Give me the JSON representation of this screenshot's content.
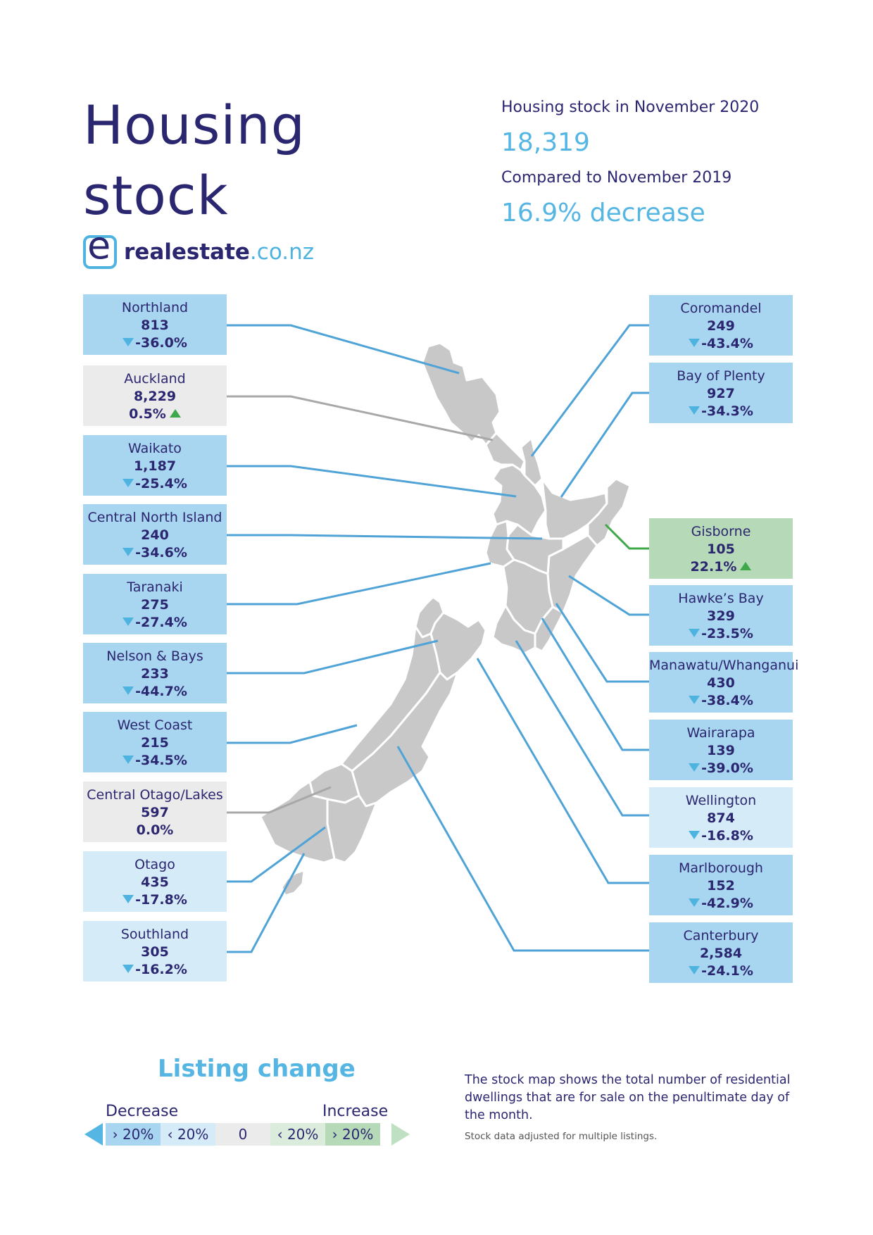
{
  "header": {
    "title_line1": "Housing",
    "title_line2": "stock",
    "logo_main": "realestate",
    "logo_tld": ".co.nz",
    "logo_mark": "e"
  },
  "summary": {
    "stock_label": "Housing stock in November 2020",
    "stock_value": "18,319",
    "compare_label": "Compared to November 2019",
    "compare_value": "16.9% decrease"
  },
  "regions_left": [
    {
      "name": "Northland",
      "count": "813",
      "change": "-36.0%",
      "direction": "down",
      "color": "#a8d5ef"
    },
    {
      "name": "Auckland",
      "count": "8,229",
      "change": "0.5%",
      "direction": "up",
      "color": "#ebebeb"
    },
    {
      "name": "Waikato",
      "count": "1,187",
      "change": "-25.4%",
      "direction": "down",
      "color": "#a8d5ef"
    },
    {
      "name": "Central North Island",
      "count": "240",
      "change": "-34.6%",
      "direction": "down",
      "color": "#a8d5ef"
    },
    {
      "name": "Taranaki",
      "count": "275",
      "change": "-27.4%",
      "direction": "down",
      "color": "#a8d5ef"
    },
    {
      "name": "Nelson & Bays",
      "count": "233",
      "change": "-44.7%",
      "direction": "down",
      "color": "#a8d5ef"
    },
    {
      "name": "West Coast",
      "count": "215",
      "change": "-34.5%",
      "direction": "down",
      "color": "#a8d5ef"
    },
    {
      "name": "Central Otago/Lakes",
      "count": "597",
      "change": "0.0%",
      "direction": "none",
      "color": "#ebebeb"
    },
    {
      "name": "Otago",
      "count": "435",
      "change": "-17.8%",
      "direction": "down",
      "color": "#d6ebf8"
    },
    {
      "name": "Southland",
      "count": "305",
      "change": "-16.2%",
      "direction": "down",
      "color": "#d6ebf8"
    }
  ],
  "regions_right": [
    {
      "name": "Coromandel",
      "count": "249",
      "change": "-43.4%",
      "direction": "down",
      "color": "#a8d5ef"
    },
    {
      "name": "Bay of Plenty",
      "count": "927",
      "change": "-34.3%",
      "direction": "down",
      "color": "#a8d5ef"
    },
    {
      "name": "Gisborne",
      "count": "105",
      "change": "22.1%",
      "direction": "up",
      "color": "#b6d9b7"
    },
    {
      "name": "Hawke’s Bay",
      "count": "329",
      "change": "-23.5%",
      "direction": "down",
      "color": "#a8d5ef"
    },
    {
      "name": "Manawatu/Whanganui",
      "count": "430",
      "change": "-38.4%",
      "direction": "down",
      "color": "#a8d5ef"
    },
    {
      "name": "Wairarapa",
      "count": "139",
      "change": "-39.0%",
      "direction": "down",
      "color": "#a8d5ef"
    },
    {
      "name": "Wellington",
      "count": "874",
      "change": "-16.8%",
      "direction": "down",
      "color": "#d6ebf8"
    },
    {
      "name": "Marlborough",
      "count": "152",
      "change": "-42.9%",
      "direction": "down",
      "color": "#a8d5ef"
    },
    {
      "name": "Canterbury",
      "count": "2,584",
      "change": "-24.1%",
      "direction": "down",
      "color": "#a8d5ef"
    }
  ],
  "legend": {
    "title": "Listing change",
    "decrease_label": "Decrease",
    "increase_label": "Increase",
    "cells": [
      {
        "label": "› 20%",
        "color": "#a8d5ef"
      },
      {
        "label": "‹ 20%",
        "color": "#d6ebf8"
      },
      {
        "label": "0",
        "color": "#ebebeb"
      },
      {
        "label": "‹ 20%",
        "color": "#dcecdc"
      },
      {
        "label": "› 20%",
        "color": "#b6d9b7"
      }
    ]
  },
  "notes": {
    "main": "The stock map shows the total number of residential dwellings that are for sale on the penultimate day of the month.",
    "small": "Stock data adjusted for multiple listings."
  },
  "colors": {
    "navy": "#2b2670",
    "blue": "#56b6e3",
    "line_blue": "#4fa3d6",
    "line_grey": "#a8a8a8",
    "line_green": "#3ea84a",
    "map_fill": "#c8c8c8"
  }
}
